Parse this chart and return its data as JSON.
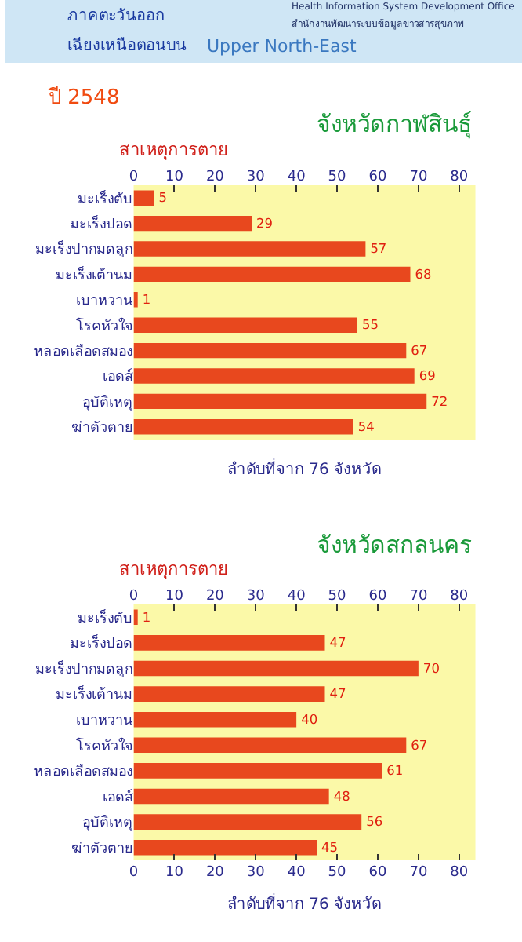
{
  "chart_data": [
    {
      "type": "bar",
      "orientation": "horizontal",
      "title": "ปี 2548",
      "subtitle": "จังหวัดกาฬสินธุ์",
      "ylabel": "สาเหตุการตาย",
      "xlabel": "ลำดับที่จาก 76 จังหวัด",
      "annotations": [
        "ภาคตะวันออก",
        "เฉียงเหนือตอนบน",
        "Upper North-East",
        "Health Information System Development Office",
        "สำนักงานพัฒนาระบบข้อมูลข่าวสารสุขภาพ"
      ],
      "categories": [
        "มะเร็งตับ",
        "มะเร็งปอด",
        "มะเร็งปากมดลูก",
        "มะเร็งเต้านม",
        "เบาหวาน",
        "โรคหัวใจ",
        "หลอดเลือดสมอง",
        "เอดส์",
        "อุบัติเหตุ",
        "ฆ่าตัวตาย"
      ],
      "values": [
        5,
        29,
        57,
        68,
        1,
        55,
        67,
        69,
        72,
        54
      ],
      "color": "#e8481e",
      "data_labels": true,
      "x2lim": [
        0,
        84
      ],
      "x2ticks": [
        0,
        10,
        20,
        30,
        40,
        50,
        60,
        70,
        80
      ]
    },
    {
      "type": "bar",
      "orientation": "horizontal",
      "subtitle": "จังหวัดสกลนคร",
      "ylabel": "สาเหตุการตาย",
      "xlabel": "ลำดับที่จาก 76 จังหวัด",
      "categories": [
        "มะเร็งตับ",
        "มะเร็งปอด",
        "มะเร็งปากมดลูก",
        "มะเร็งเต้านม",
        "เบาหวาน",
        "โรคหัวใจ",
        "หลอดเลือดสมอง",
        "เอดส์",
        "อุบัติเหตุ",
        "ฆ่าตัวตาย"
      ],
      "values": [
        1,
        47,
        70,
        47,
        40,
        67,
        61,
        48,
        56,
        45
      ],
      "color": "#e8481e",
      "data_labels": true,
      "xlim": [
        0,
        84
      ],
      "xticks": [
        0,
        10,
        20,
        30,
        40,
        50,
        60,
        70,
        80
      ],
      "x2lim": [
        0,
        84
      ],
      "x2ticks": [
        0,
        10,
        20,
        30,
        40,
        50,
        60,
        70,
        80
      ]
    }
  ]
}
